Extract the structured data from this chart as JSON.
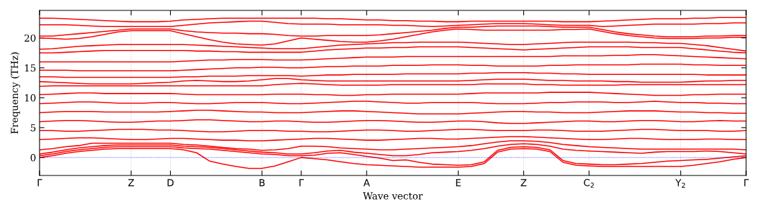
{
  "chart_data": {
    "type": "line",
    "xlabel": "Wave vector",
    "ylabel": "Frequency (THz)",
    "categories": [
      "Γ",
      null,
      null,
      null,
      null,
      null,
      null,
      "Z",
      null,
      null,
      "D",
      null,
      null,
      null,
      null,
      null,
      null,
      "B",
      null,
      null,
      "Γ",
      null,
      null,
      null,
      null,
      "A",
      null,
      null,
      null,
      null,
      null,
      null,
      "E",
      null,
      null,
      null,
      null,
      "Z",
      null,
      null,
      null,
      null,
      "C$_{2}$",
      null,
      null,
      null,
      null,
      null,
      null,
      "Y$_{2}$",
      null,
      null,
      null,
      null,
      "Γ"
    ],
    "ylim": [
      -3,
      24.6
    ],
    "yticks": [
      0,
      5,
      10,
      15,
      20
    ],
    "grid": "x",
    "marker": "none",
    "line_style": "solid",
    "ref_lines": [
      {
        "axis": "y",
        "value": 0,
        "color": "#0000ff",
        "line_style": "dotted"
      }
    ],
    "series": [
      {
        "color": "#ff0000",
        "values": [
          0,
          0.3,
          0.7,
          1.0,
          1.2,
          1.4,
          1.5,
          1.5,
          1.5,
          1.5,
          1.5,
          1.3,
          0.8,
          -0.6,
          -1.1,
          -1.5,
          -1.8,
          -1.8,
          -1.4,
          -0.7,
          0,
          -0.2,
          -0.4,
          -0.7,
          -1.0,
          -1.2,
          -1.3,
          -1.4,
          -1.5,
          -1.6,
          -1.6,
          -1.6,
          -1.6,
          -1.5,
          -1.0,
          0.9,
          1.4,
          1.5,
          1.4,
          1.0,
          -0.8,
          -1.3,
          -1.4,
          -1.5,
          -1.5,
          -1.5,
          -1.5,
          -1.5,
          -1.5,
          -1.5,
          -1.3,
          -1.0,
          -0.7,
          -0.3,
          0
        ]
      },
      {
        "color": "#ff0000",
        "values": [
          0.3,
          0.6,
          1.0,
          1.3,
          1.5,
          1.7,
          1.8,
          1.8,
          1.8,
          1.8,
          1.8,
          1.6,
          1.5,
          1.4,
          1.2,
          1.0,
          0.8,
          0.6,
          0.5,
          0.3,
          0.3,
          0.4,
          0.7,
          0.8,
          0.5,
          0.2,
          -0.1,
          -0.5,
          -0.4,
          -0.8,
          -1.1,
          -1.2,
          -1.3,
          -1.2,
          -0.7,
          1.2,
          1.7,
          1.8,
          1.7,
          1.3,
          -0.5,
          -1.0,
          -1.1,
          -1.2,
          -1.2,
          -1.1,
          -1.0,
          -0.8,
          -0.6,
          -0.5,
          -0.4,
          -0.3,
          -0.1,
          0.1,
          0.3
        ]
      },
      {
        "color": "#ff0000",
        "values": [
          0.6,
          0.9,
          1.3,
          1.6,
          1.8,
          2.0,
          2.1,
          2.1,
          2.1,
          2.1,
          2.1,
          1.9,
          1.8,
          1.7,
          1.5,
          1.3,
          1.1,
          0.9,
          0.8,
          0.6,
          0.6,
          0.8,
          1.1,
          1.2,
          0.9,
          0.7,
          0.5,
          0.3,
          0.3,
          0.5,
          0.8,
          0.9,
          1.0,
          1.2,
          1.5,
          1.9,
          2.2,
          2.3,
          2.2,
          1.9,
          1.4,
          1.2,
          1.1,
          1.0,
          0.9,
          0.8,
          0.7,
          0.9,
          1.0,
          1.0,
          1.0,
          1.1,
          1.0,
          0.8,
          0.6
        ]
      },
      {
        "color": "#ff0000",
        "values": [
          1.3,
          1.5,
          1.8,
          2.0,
          2.4,
          2.4,
          2.4,
          2.4,
          2.4,
          2.4,
          2.4,
          2.2,
          2.1,
          1.9,
          1.7,
          1.5,
          1.4,
          1.2,
          1.3,
          1.5,
          1.9,
          1.9,
          1.8,
          1.6,
          1.5,
          1.4,
          1.3,
          1.3,
          1.4,
          1.5,
          1.6,
          1.7,
          1.8,
          2.0,
          2.3,
          2.6,
          2.8,
          2.8,
          2.7,
          2.5,
          2.2,
          2.0,
          1.8,
          1.7,
          1.6,
          1.5,
          1.4,
          1.4,
          1.4,
          1.4,
          1.4,
          1.4,
          1.4,
          1.4,
          1.3
        ]
      },
      {
        "color": "#ff0000",
        "values": [
          3.0,
          3.1,
          3.2,
          3.3,
          3.3,
          3.2,
          3.1,
          3.0,
          3.0,
          3.1,
          3.2,
          3.2,
          3.1,
          3.0,
          2.9,
          2.9,
          2.8,
          2.8,
          2.9,
          3.0,
          3.1,
          3.2,
          3.2,
          3.1,
          3.0,
          2.9,
          2.9,
          3.0,
          3.1,
          3.2,
          3.2,
          3.1,
          3.1,
          3.2,
          3.3,
          3.4,
          3.5,
          3.5,
          3.4,
          3.3,
          3.2,
          3.1,
          3.0,
          3.0,
          3.1,
          3.2,
          3.2,
          3.1,
          3.0,
          3.0,
          3.0,
          3.1,
          3.1,
          3.0,
          3.0
        ]
      },
      {
        "color": "#ff0000",
        "values": [
          4.5,
          4.5,
          4.4,
          4.4,
          4.5,
          4.6,
          4.7,
          4.7,
          4.7,
          4.6,
          4.6,
          4.5,
          4.4,
          4.3,
          4.3,
          4.4,
          4.5,
          4.5,
          4.5,
          4.4,
          4.4,
          4.3,
          4.3,
          4.4,
          4.5,
          4.6,
          4.6,
          4.5,
          4.4,
          4.4,
          4.5,
          4.6,
          4.7,
          4.7,
          4.6,
          4.5,
          4.5,
          4.5,
          4.6,
          4.6,
          4.5,
          4.4,
          4.4,
          4.4,
          4.5,
          4.6,
          4.7,
          4.7,
          4.6,
          4.5,
          4.5,
          4.5,
          4.4,
          4.4,
          4.5
        ]
      },
      {
        "color": "#ff0000",
        "values": [
          6.0,
          6.1,
          6.2,
          6.2,
          6.1,
          6.0,
          5.9,
          5.9,
          6.0,
          6.1,
          6.1,
          6.2,
          6.3,
          6.3,
          6.2,
          6.1,
          6.0,
          6.0,
          6.1,
          6.1,
          6.0,
          5.9,
          5.9,
          6.0,
          6.1,
          6.2,
          6.2,
          6.1,
          6.0,
          5.9,
          5.9,
          6.0,
          6.1,
          6.1,
          6.0,
          5.8,
          5.7,
          5.7,
          5.8,
          5.9,
          6.0,
          6.1,
          6.1,
          6.0,
          6.0,
          6.1,
          6.2,
          6.2,
          6.1,
          6.0,
          6.0,
          6.1,
          6.2,
          6.1,
          6.1
        ]
      },
      {
        "color": "#ff0000",
        "values": [
          7.5,
          7.6,
          7.7,
          7.7,
          7.7,
          7.6,
          7.6,
          7.6,
          7.6,
          7.6,
          7.7,
          7.8,
          7.9,
          7.9,
          7.8,
          7.7,
          7.6,
          7.6,
          7.5,
          7.5,
          7.5,
          7.6,
          7.7,
          7.8,
          7.8,
          7.7,
          7.6,
          7.5,
          7.4,
          7.3,
          7.3,
          7.3,
          7.3,
          7.4,
          7.5,
          7.6,
          7.7,
          7.7,
          7.6,
          7.6,
          7.5,
          7.5,
          7.5,
          7.6,
          7.7,
          7.8,
          7.8,
          7.8,
          7.7,
          7.6,
          7.6,
          7.5,
          7.5,
          7.4,
          7.4
        ]
      },
      {
        "color": "#ff0000",
        "values": [
          9.0,
          9.1,
          9.2,
          9.3,
          9.3,
          9.2,
          9.1,
          9.1,
          9.1,
          9.2,
          9.2,
          9.1,
          9.0,
          9.0,
          9.1,
          9.2,
          9.2,
          9.2,
          9.1,
          9.0,
          9.0,
          9.1,
          9.2,
          9.3,
          9.4,
          9.4,
          9.3,
          9.2,
          9.1,
          9.1,
          9.2,
          9.2,
          9.2,
          9.2,
          9.1,
          9.0,
          9.0,
          9.0,
          9.1,
          9.2,
          9.2,
          9.3,
          9.3,
          9.3,
          9.2,
          9.2,
          9.3,
          9.4,
          9.3,
          9.2,
          9.2,
          9.1,
          9.1,
          9.0,
          9.0
        ]
      },
      {
        "color": "#ff0000",
        "values": [
          10.5,
          10.6,
          10.7,
          10.8,
          10.8,
          10.7,
          10.7,
          10.7,
          10.7,
          10.7,
          10.7,
          10.6,
          10.5,
          10.5,
          10.5,
          10.5,
          10.5,
          10.5,
          10.6,
          10.6,
          10.6,
          10.5,
          10.5,
          10.4,
          10.4,
          10.5,
          10.5,
          10.6,
          10.6,
          10.6,
          10.6,
          10.6,
          10.6,
          10.7,
          10.8,
          10.8,
          10.8,
          10.8,
          10.8,
          10.9,
          10.9,
          10.9,
          10.9,
          10.8,
          10.7,
          10.6,
          10.5,
          10.4,
          10.4,
          10.4,
          10.5,
          10.5,
          10.6,
          10.6,
          10.6
        ]
      },
      {
        "color": "#ff0000",
        "values": [
          11.9,
          12.0,
          12.0,
          12.0,
          12.0,
          12.0,
          12.0,
          12.0,
          12.0,
          12.0,
          12.0,
          12.0,
          12.0,
          12.0,
          12.0,
          12.0,
          12.0,
          12.0,
          12.2,
          12.3,
          12.4,
          12.3,
          12.2,
          12.1,
          12.1,
          12.1,
          12.1,
          12.2,
          12.2,
          12.2,
          12.2,
          12.2,
          12.2,
          12.2,
          12.3,
          12.3,
          12.3,
          12.3,
          12.2,
          12.2,
          12.1,
          12.1,
          12.1,
          12.1,
          12.1,
          12.2,
          12.2,
          12.2,
          12.2,
          12.2,
          12.2,
          12.2,
          12.2,
          12.2,
          12.2
        ]
      },
      {
        "color": "#ff0000",
        "values": [
          12.7,
          12.6,
          12.5,
          12.4,
          12.3,
          12.3,
          12.3,
          12.3,
          12.4,
          12.5,
          12.6,
          12.8,
          12.9,
          12.8,
          12.7,
          12.7,
          12.8,
          13.0,
          13.2,
          13.2,
          13.0,
          12.9,
          12.8,
          12.8,
          12.8,
          12.8,
          12.8,
          12.8,
          12.8,
          12.8,
          12.8,
          12.8,
          12.8,
          12.9,
          13.0,
          13.1,
          13.1,
          13.1,
          13.0,
          12.9,
          12.9,
          12.8,
          12.8,
          12.8,
          12.7,
          12.7,
          12.6,
          12.6,
          12.6,
          12.6,
          12.7,
          12.8,
          12.8,
          12.9,
          12.9
        ]
      },
      {
        "color": "#ff0000",
        "values": [
          13.5,
          13.5,
          13.4,
          13.4,
          13.4,
          13.4,
          13.4,
          13.4,
          13.4,
          13.4,
          13.4,
          13.5,
          13.5,
          13.6,
          13.6,
          13.6,
          13.7,
          13.7,
          13.7,
          13.7,
          13.6,
          13.7,
          13.8,
          13.8,
          13.9,
          13.9,
          13.9,
          13.9,
          14.0,
          14.0,
          14.0,
          14.0,
          14.0,
          14.1,
          14.1,
          14.2,
          14.2,
          14.2,
          14.1,
          14.1,
          14.0,
          14.0,
          13.9,
          13.9,
          13.9,
          13.9,
          13.9,
          13.9,
          13.9,
          13.9,
          13.9,
          13.8,
          13.8,
          13.8,
          13.8
        ]
      },
      {
        "color": "#ff0000",
        "values": [
          14.6,
          14.6,
          14.6,
          14.5,
          14.5,
          14.5,
          14.5,
          14.5,
          14.5,
          14.5,
          14.5,
          14.6,
          14.7,
          14.8,
          14.9,
          15.0,
          15.0,
          15.1,
          15.1,
          15.0,
          15.0,
          15.1,
          15.2,
          15.2,
          15.3,
          15.3,
          15.3,
          15.4,
          15.4,
          15.4,
          15.5,
          15.5,
          15.5,
          15.4,
          15.4,
          15.3,
          15.3,
          15.3,
          15.3,
          15.4,
          15.4,
          15.5,
          15.5,
          15.5,
          15.5,
          15.5,
          15.6,
          15.6,
          15.6,
          15.6,
          15.5,
          15.5,
          15.4,
          15.4,
          15.4
        ]
      },
      {
        "color": "#ff0000",
        "values": [
          16.0,
          16.0,
          16.0,
          16.0,
          16.0,
          16.0,
          16.0,
          16.0,
          16.0,
          16.0,
          16.0,
          16.1,
          16.2,
          16.3,
          16.3,
          16.4,
          16.4,
          16.4,
          16.3,
          16.3,
          16.3,
          16.4,
          16.5,
          16.6,
          16.7,
          16.8,
          16.8,
          16.8,
          16.9,
          16.9,
          16.9,
          16.9,
          16.9,
          16.9,
          16.9,
          16.9,
          16.9,
          16.9,
          16.9,
          16.9,
          17.0,
          17.0,
          17.0,
          17.0,
          17.1,
          17.1,
          17.2,
          17.2,
          17.1,
          17.0,
          16.9,
          16.8,
          16.7,
          16.6,
          16.5
        ]
      },
      {
        "color": "#ff0000",
        "values": [
          17.5,
          17.5,
          17.6,
          17.7,
          17.8,
          17.9,
          17.9,
          17.9,
          17.9,
          17.9,
          17.9,
          17.9,
          17.8,
          17.8,
          17.7,
          17.7,
          17.6,
          17.6,
          17.6,
          17.6,
          17.6,
          17.8,
          18.0,
          18.1,
          18.2,
          18.3,
          18.3,
          18.4,
          18.4,
          18.5,
          18.5,
          18.5,
          18.5,
          18.4,
          18.3,
          18.2,
          18.1,
          18.0,
          18.1,
          18.2,
          18.3,
          18.4,
          18.5,
          18.5,
          18.5,
          18.5,
          18.4,
          18.4,
          18.4,
          18.4,
          18.2,
          18.0,
          17.8,
          17.6,
          17.5
        ]
      },
      {
        "color": "#ff0000",
        "values": [
          18.1,
          18.2,
          18.4,
          18.6,
          18.7,
          18.8,
          18.9,
          18.9,
          18.9,
          18.9,
          18.9,
          18.9,
          18.8,
          18.7,
          18.6,
          18.5,
          18.4,
          18.3,
          18.2,
          18.2,
          18.2,
          18.4,
          18.6,
          18.8,
          18.9,
          19.0,
          19.1,
          19.2,
          19.2,
          19.3,
          19.3,
          19.3,
          19.3,
          19.2,
          19.1,
          19.0,
          18.9,
          18.9,
          19.0,
          19.1,
          19.2,
          19.3,
          19.3,
          19.3,
          19.3,
          19.3,
          19.2,
          19.2,
          19.1,
          19.1,
          18.9,
          18.7,
          18.4,
          18.1,
          17.8
        ]
      },
      {
        "color": "#ff0000",
        "values": [
          20.0,
          19.9,
          19.8,
          19.9,
          20.2,
          20.6,
          21.0,
          21.2,
          21.2,
          21.2,
          21.2,
          20.7,
          20.2,
          19.7,
          19.3,
          19.0,
          18.9,
          18.8,
          19.0,
          19.5,
          20.0,
          19.8,
          19.6,
          19.4,
          19.3,
          19.3,
          19.5,
          19.8,
          20.2,
          20.6,
          21.0,
          21.3,
          21.5,
          21.4,
          21.3,
          21.3,
          21.3,
          21.3,
          21.3,
          21.3,
          21.4,
          21.4,
          21.5,
          21.1,
          20.7,
          20.4,
          20.2,
          20.0,
          19.9,
          19.9,
          19.9,
          20.0,
          20.0,
          20.1,
          20.1
        ]
      },
      {
        "color": "#ff0000",
        "values": [
          20.3,
          20.3,
          20.5,
          20.7,
          20.9,
          21.1,
          21.3,
          21.5,
          21.5,
          21.5,
          21.5,
          21.2,
          21.0,
          20.9,
          20.8,
          20.8,
          20.7,
          20.7,
          20.6,
          20.4,
          20.3,
          20.3,
          20.4,
          20.4,
          20.4,
          20.4,
          20.5,
          20.7,
          20.9,
          21.1,
          21.3,
          21.6,
          21.8,
          21.8,
          21.9,
          22.0,
          22.0,
          22.0,
          22.0,
          21.9,
          21.8,
          21.8,
          21.8,
          21.4,
          21.0,
          20.7,
          20.5,
          20.3,
          20.2,
          20.2,
          20.2,
          20.3,
          20.3,
          20.4,
          20.4
        ]
      },
      {
        "color": "#ff0000",
        "values": [
          22.2,
          22.2,
          22.2,
          22.1,
          22.0,
          21.9,
          21.9,
          21.9,
          21.9,
          21.9,
          21.9,
          22.1,
          22.3,
          22.5,
          22.6,
          22.7,
          22.8,
          22.8,
          22.6,
          22.4,
          22.3,
          22.3,
          22.3,
          22.2,
          22.2,
          22.2,
          22.2,
          22.1,
          22.1,
          22.0,
          21.9,
          22.0,
          22.1,
          22.2,
          22.3,
          22.4,
          22.4,
          22.4,
          22.3,
          22.2,
          22.1,
          22.1,
          22.1,
          21.9,
          22.0,
          22.1,
          22.2,
          22.3,
          22.3,
          22.3,
          22.3,
          22.4,
          22.4,
          22.5,
          22.5
        ]
      },
      {
        "color": "#ff0000",
        "values": [
          23.3,
          23.3,
          23.2,
          23.1,
          23.0,
          22.9,
          22.8,
          22.7,
          22.7,
          22.7,
          22.8,
          23.0,
          23.1,
          23.2,
          23.3,
          23.3,
          23.3,
          23.3,
          23.3,
          23.3,
          23.3,
          23.3,
          23.2,
          23.2,
          23.1,
          23.0,
          23.0,
          22.9,
          22.9,
          22.8,
          22.8,
          22.7,
          22.7,
          22.8,
          22.8,
          22.8,
          22.8,
          22.8,
          22.8,
          22.8,
          22.7,
          22.7,
          22.7,
          22.8,
          22.9,
          23.0,
          23.1,
          23.2,
          23.2,
          23.2,
          23.3,
          23.3,
          23.4,
          23.4,
          23.4
        ]
      }
    ]
  }
}
